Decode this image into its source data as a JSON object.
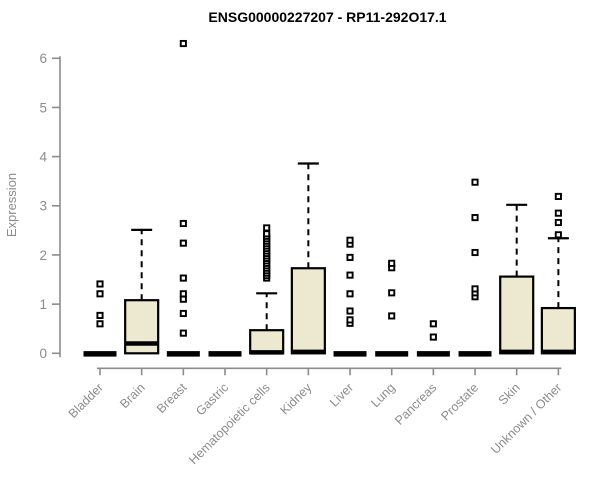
{
  "header": {
    "title": "ENSG00000227207 - RP11-292O17.1"
  },
  "chart_data": {
    "type": "boxplot",
    "title": "ENSG00000227207 - RP11-292O17.1",
    "xlabel": "",
    "ylabel": "Expression",
    "ylim": [
      0,
      6
    ],
    "yticks": [
      0,
      1,
      2,
      3,
      4,
      5,
      6
    ],
    "grid": false,
    "legend": "none",
    "categories": [
      "Bladder",
      "Brain",
      "Breast",
      "Gastric",
      "Hematopoietic cells",
      "Kidney",
      "Liver",
      "Lung",
      "Pancreas",
      "Prostate",
      "Skin",
      "Unknown / Other"
    ],
    "series": [
      {
        "category": "Bladder",
        "q1": 0,
        "median": 0,
        "q3": 0,
        "whisker_low": 0,
        "whisker_high": 0,
        "outliers": [
          0.6,
          0.77,
          1.21,
          1.41
        ]
      },
      {
        "category": "Brain",
        "q1": 0,
        "median": 0.2,
        "q3": 1.08,
        "whisker_low": 0,
        "whisker_high": 2.51,
        "outliers": []
      },
      {
        "category": "Breast",
        "q1": 0,
        "median": 0,
        "q3": 0,
        "whisker_low": 0,
        "whisker_high": 0,
        "outliers": [
          0.41,
          0.81,
          1.1,
          1.21,
          1.53,
          2.24,
          2.64,
          6.3
        ]
      },
      {
        "category": "Gastric",
        "q1": 0,
        "median": 0,
        "q3": 0,
        "whisker_low": 0,
        "whisker_high": 0,
        "outliers": []
      },
      {
        "category": "Hematopoietic cells",
        "q1": 0,
        "median": 0.02,
        "q3": 0.47,
        "whisker_low": 0,
        "whisker_high": 1.22,
        "outliers": [
          1.53,
          1.58,
          1.63,
          1.68,
          1.73,
          1.78,
          1.83,
          1.88,
          1.93,
          1.98,
          2.03,
          2.08,
          2.13,
          2.18,
          2.23,
          2.28,
          2.33,
          2.38,
          2.43,
          2.55
        ]
      },
      {
        "category": "Kidney",
        "q1": 0,
        "median": 0.03,
        "q3": 1.73,
        "whisker_low": 0,
        "whisker_high": 3.86,
        "outliers": []
      },
      {
        "category": "Liver",
        "q1": 0,
        "median": 0,
        "q3": 0,
        "whisker_low": 0,
        "whisker_high": 0,
        "outliers": [
          0.61,
          0.68,
          0.86,
          1.21,
          1.59,
          1.95,
          2.22,
          2.3
        ]
      },
      {
        "category": "Lung",
        "q1": 0,
        "median": 0,
        "q3": 0,
        "whisker_low": 0,
        "whisker_high": 0,
        "outliers": [
          0.76,
          1.23,
          1.74,
          1.83
        ]
      },
      {
        "category": "Pancreas",
        "q1": 0,
        "median": 0,
        "q3": 0,
        "whisker_low": 0,
        "whisker_high": 0,
        "outliers": [
          0.33,
          0.6
        ]
      },
      {
        "category": "Prostate",
        "q1": 0,
        "median": 0,
        "q3": 0,
        "whisker_low": 0,
        "whisker_high": 0,
        "outliers": [
          1.15,
          1.23,
          1.31,
          2.05,
          2.76,
          3.48
        ]
      },
      {
        "category": "Skin",
        "q1": 0,
        "median": 0.03,
        "q3": 1.56,
        "whisker_low": 0,
        "whisker_high": 3.02,
        "outliers": []
      },
      {
        "category": "Unknown / Other",
        "q1": 0,
        "median": 0.03,
        "q3": 0.92,
        "whisker_low": 0,
        "whisker_high": 2.34,
        "outliers": [
          2.41,
          2.66,
          2.85,
          3.19
        ]
      }
    ],
    "colors": {
      "box_fill": "#EDE8D0",
      "box_border": "#000000",
      "median": "#000000",
      "whisker": "#000000",
      "outlier_stroke": "#000000",
      "outlier_fill": "#ffffff",
      "axis": "#8c8c8c",
      "tick_label": "#8c8c8c",
      "title": "#000000",
      "background": "#ffffff"
    }
  }
}
